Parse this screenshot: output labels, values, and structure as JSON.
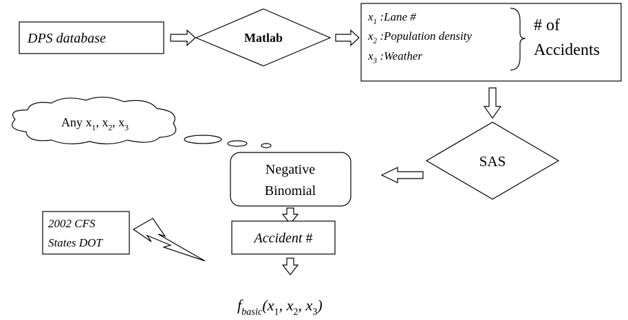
{
  "nodes": {
    "source": {
      "label": "DPS database"
    },
    "tool": {
      "label": "Matlab"
    },
    "variables": [
      [
        {
          "t": "x"
        },
        {
          "t": "1",
          "sub": true
        },
        {
          "t": " :Lane #"
        }
      ],
      [
        {
          "t": "x"
        },
        {
          "t": "2",
          "sub": true
        },
        {
          "t": " :Population density"
        }
      ],
      [
        {
          "t": "x"
        },
        {
          "t": "3",
          "sub": true
        },
        {
          "t": " :Weather"
        }
      ]
    ],
    "outcome": {
      "lines": [
        "# of",
        "Accidents"
      ]
    },
    "software": {
      "label": "SAS"
    },
    "model": {
      "lines": [
        "Negative",
        "Binomial"
      ]
    },
    "result": [
      {
        "t": "Accident",
        "italic": true
      },
      {
        "t": " #"
      }
    ],
    "thought": [
      {
        "t": "Any x"
      },
      {
        "t": "1",
        "sub": true
      },
      {
        "t": ", x"
      },
      {
        "t": "2",
        "sub": true
      },
      {
        "t": ", x"
      },
      {
        "t": "3",
        "sub": true
      }
    ],
    "external": {
      "lines": [
        "2002 CFS",
        "States DOT"
      ]
    },
    "formula": [
      {
        "t": "f",
        "italic": true
      },
      {
        "t": "basic",
        "sub": true,
        "italic": true
      },
      {
        "t": "(x",
        "italic": true
      },
      {
        "t": "1",
        "sub": true
      },
      {
        "t": ", x",
        "italic": true
      },
      {
        "t": "2",
        "sub": true
      },
      {
        "t": ", x",
        "italic": true
      },
      {
        "t": "3",
        "sub": true
      },
      {
        "t": ")",
        "italic": true
      }
    ]
  }
}
